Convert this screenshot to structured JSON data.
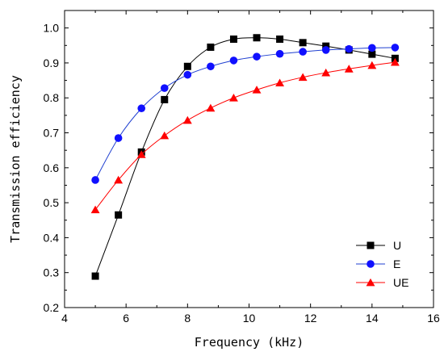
{
  "chart_data": {
    "type": "line",
    "xlabel": "Frequency (kHz)",
    "ylabel": "Transmission efficiency",
    "xlim": [
      4,
      16
    ],
    "ylim": [
      0.2,
      1.05
    ],
    "xticks": [
      4,
      6,
      8,
      10,
      12,
      14,
      16
    ],
    "yticks": [
      0.2,
      0.3,
      0.4,
      0.5,
      0.6,
      0.7,
      0.8,
      0.9,
      1.0
    ],
    "xtick_labels": [
      "4",
      "6",
      "8",
      "10",
      "12",
      "14",
      "16"
    ],
    "ytick_labels": [
      "0.2",
      "0.3",
      "0.4",
      "0.5",
      "0.6",
      "0.7",
      "0.8",
      "0.9",
      "1.0"
    ],
    "grid": false,
    "legend_position": "bottom-right",
    "x": [
      5,
      5.75,
      6.5,
      7.25,
      8,
      8.75,
      9.5,
      10.25,
      11,
      11.75,
      12.5,
      13.25,
      14,
      14.75
    ],
    "series": [
      {
        "name": "U",
        "marker": "square",
        "color": "#000000",
        "marker_color": "#000000",
        "values": [
          0.29,
          0.465,
          0.645,
          0.795,
          0.89,
          0.945,
          0.968,
          0.972,
          0.968,
          0.958,
          0.948,
          0.937,
          0.925,
          0.913
        ]
      },
      {
        "name": "E",
        "marker": "circle",
        "color": "#1f3fd0",
        "marker_color": "#1010ff",
        "values": [
          0.565,
          0.685,
          0.77,
          0.828,
          0.866,
          0.89,
          0.907,
          0.918,
          0.926,
          0.932,
          0.937,
          0.94,
          0.943,
          0.944
        ]
      },
      {
        "name": "UE",
        "marker": "triangle",
        "color": "#ff0000",
        "marker_color": "#ff0000",
        "values": [
          0.48,
          0.565,
          0.638,
          0.692,
          0.736,
          0.771,
          0.8,
          0.823,
          0.843,
          0.859,
          0.872,
          0.883,
          0.893,
          0.902
        ]
      }
    ]
  }
}
